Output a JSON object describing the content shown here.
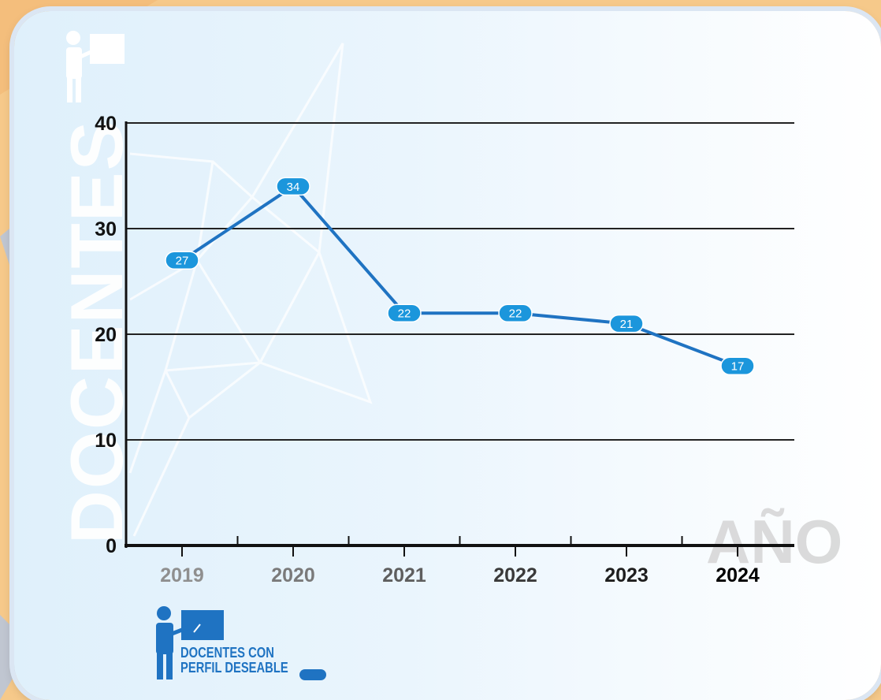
{
  "vertical_title": "DOCENTES",
  "x_axis_title": "AÑO",
  "legend": {
    "line1": "DOCENTES CON",
    "line2": "PERFIL DESEABLE",
    "icon": "teacher-board-icon"
  },
  "colors": {
    "line": "#1f73c2",
    "marker": "#1b96dc",
    "axis": "#111111"
  },
  "chart_data": {
    "type": "line",
    "x": [
      "2019",
      "2020",
      "2021",
      "2022",
      "2023",
      "2024"
    ],
    "series": [
      {
        "values": [
          27,
          34,
          22,
          22,
          21,
          17
        ]
      }
    ],
    "data_labels": [
      "27",
      "34",
      "22",
      "22",
      "21",
      "17"
    ],
    "ylim": [
      0,
      40
    ],
    "yticks": [
      0,
      10,
      20,
      30,
      40
    ],
    "xlabel": "AÑO",
    "ylabel": "DOCENTES",
    "grid": true,
    "legend_position": "bottom-left"
  }
}
